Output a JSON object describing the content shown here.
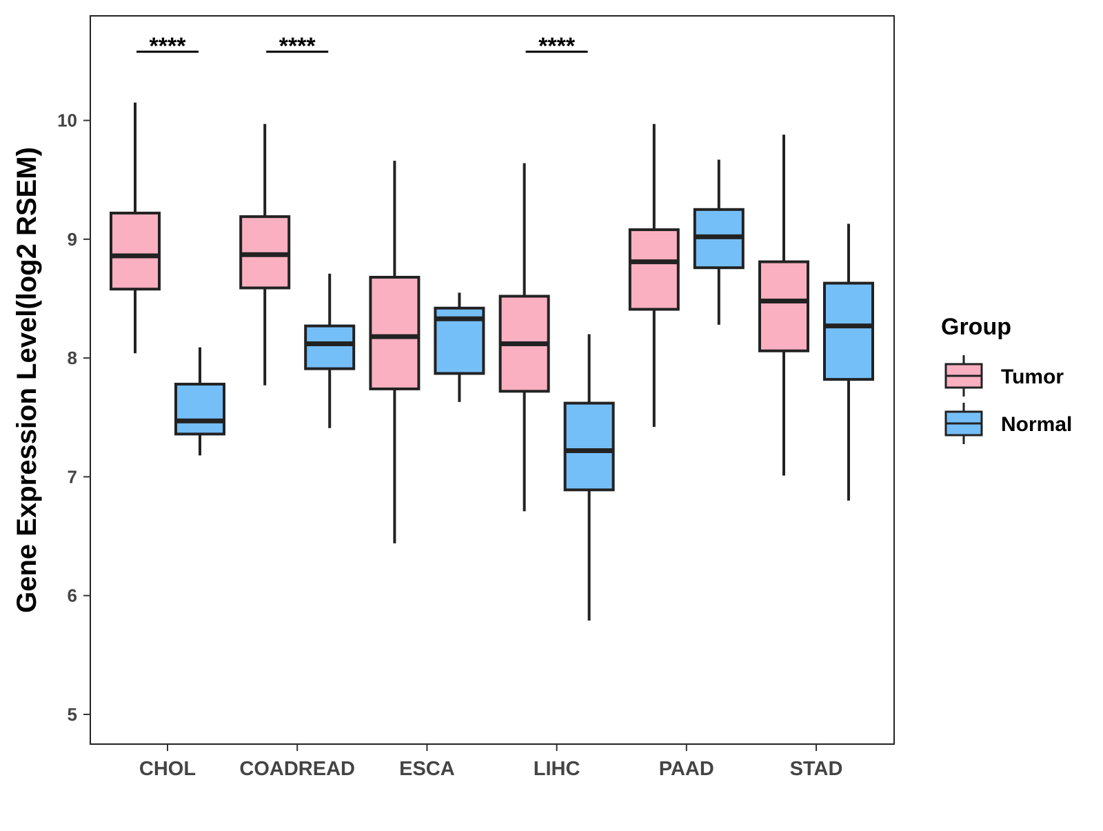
{
  "chart_data": {
    "type": "boxplot",
    "title": "",
    "xlabel": "",
    "ylabel": "Gene Expression Level(log2 RSEM)",
    "ylim": [
      4.75,
      10.88
    ],
    "yticks": [
      5,
      6,
      7,
      8,
      9,
      10
    ],
    "grid": false,
    "legend_placement": "right",
    "categories": [
      "CHOL",
      "COADREAD",
      "ESCA",
      "LIHC",
      "PAAD",
      "STAD"
    ],
    "legend": {
      "title": "Group",
      "entries": [
        {
          "name": "Tumor",
          "color": "#FBB0C1"
        },
        {
          "name": "Normal",
          "color": "#75BFF9"
        }
      ]
    },
    "series": [
      {
        "name": "Tumor",
        "color": "#FBB0C1",
        "boxes": [
          {
            "category": "CHOL",
            "min": 8.04,
            "q1": 8.58,
            "median": 8.86,
            "q3": 9.22,
            "max": 10.15
          },
          {
            "category": "COADREAD",
            "min": 7.77,
            "q1": 8.59,
            "median": 8.87,
            "q3": 9.19,
            "max": 9.97
          },
          {
            "category": "ESCA",
            "min": 6.44,
            "q1": 7.74,
            "median": 8.18,
            "q3": 8.68,
            "max": 9.66
          },
          {
            "category": "LIHC",
            "min": 6.71,
            "q1": 7.72,
            "median": 8.12,
            "q3": 8.52,
            "max": 9.64
          },
          {
            "category": "PAAD",
            "min": 7.42,
            "q1": 8.41,
            "median": 8.81,
            "q3": 9.08,
            "max": 9.97
          },
          {
            "category": "STAD",
            "min": 7.01,
            "q1": 8.06,
            "median": 8.48,
            "q3": 8.81,
            "max": 9.88
          }
        ]
      },
      {
        "name": "Normal",
        "color": "#75BFF9",
        "boxes": [
          {
            "category": "CHOL",
            "min": 7.18,
            "q1": 7.36,
            "median": 7.47,
            "q3": 7.78,
            "max": 8.09
          },
          {
            "category": "COADREAD",
            "min": 7.41,
            "q1": 7.91,
            "median": 8.12,
            "q3": 8.27,
            "max": 8.71
          },
          {
            "category": "ESCA",
            "min": 7.63,
            "q1": 7.87,
            "median": 8.33,
            "q3": 8.42,
            "max": 8.55
          },
          {
            "category": "LIHC",
            "min": 5.79,
            "q1": 6.89,
            "median": 7.22,
            "q3": 7.62,
            "max": 8.2
          },
          {
            "category": "PAAD",
            "min": 8.28,
            "q1": 8.76,
            "median": 9.02,
            "q3": 9.25,
            "max": 9.67
          },
          {
            "category": "STAD",
            "min": 6.8,
            "q1": 7.82,
            "median": 8.27,
            "q3": 8.63,
            "max": 9.13
          }
        ]
      }
    ],
    "annotations": [
      {
        "category": "CHOL",
        "text": "****"
      },
      {
        "category": "COADREAD",
        "text": "****"
      },
      {
        "category": "LIHC",
        "text": "****"
      }
    ]
  }
}
